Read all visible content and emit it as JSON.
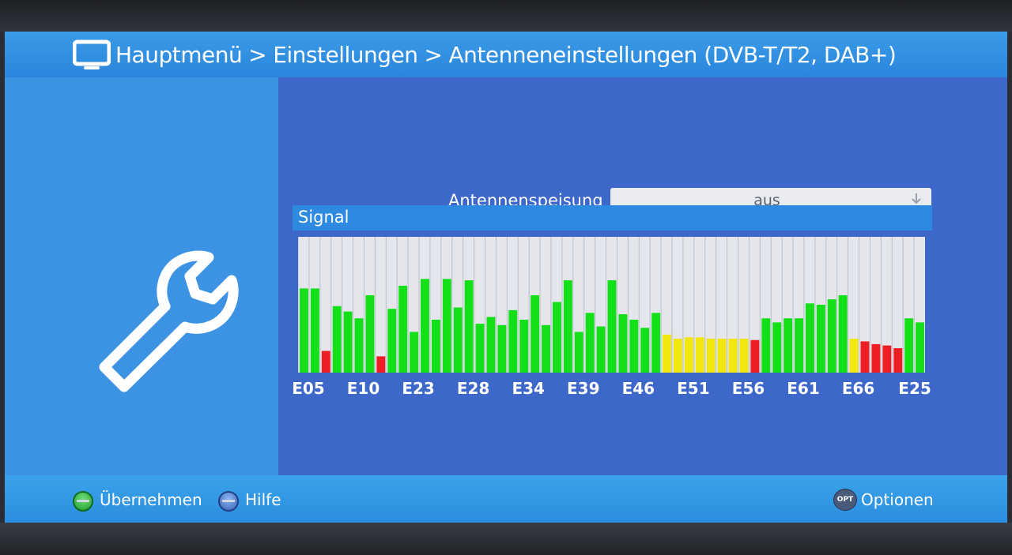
{
  "header": {
    "breadcrumb": [
      {
        "label": "Hauptmenü"
      },
      {
        "label": "Einstellungen"
      },
      {
        "label": "Antenneneinstellungen (DVB-T/T2, DAB+)"
      }
    ],
    "separator": ">"
  },
  "settings": {
    "antenna_power_label": "Antennenspeisung",
    "antenna_power_value": "aus"
  },
  "signal": {
    "title": "Signal"
  },
  "chart_data": {
    "type": "bar",
    "title": "",
    "ylim": [
      0,
      100
    ],
    "tick_labels": [
      "E05",
      "E10",
      "E23",
      "E28",
      "E34",
      "E39",
      "E46",
      "E51",
      "E56",
      "E61",
      "E66",
      "E25"
    ],
    "values": [
      62,
      62,
      16,
      49,
      45,
      40,
      57,
      12,
      47,
      64,
      30,
      69,
      39,
      69,
      48,
      68,
      36,
      41,
      35,
      46,
      39,
      57,
      35,
      52,
      68,
      30,
      44,
      34,
      68,
      43,
      39,
      33,
      44,
      28,
      25,
      26,
      26,
      25,
      25,
      25,
      25,
      24,
      40,
      37,
      40,
      40,
      51,
      50,
      54,
      57,
      25,
      23,
      21,
      20,
      18,
      40,
      37
    ],
    "colors": [
      "green",
      "green",
      "red",
      "green",
      "green",
      "green",
      "green",
      "red",
      "green",
      "green",
      "green",
      "green",
      "green",
      "green",
      "green",
      "green",
      "green",
      "green",
      "green",
      "green",
      "green",
      "green",
      "green",
      "green",
      "green",
      "green",
      "green",
      "green",
      "green",
      "green",
      "green",
      "green",
      "green",
      "yellow",
      "yellow",
      "yellow",
      "yellow",
      "yellow",
      "yellow",
      "yellow",
      "yellow",
      "red",
      "green",
      "green",
      "green",
      "green",
      "green",
      "green",
      "green",
      "green",
      "yellow",
      "red",
      "red",
      "red",
      "red",
      "green",
      "green"
    ],
    "status_colors": {
      "green": "#14e01a",
      "yellow": "#f2e70f",
      "red": "#ef1d24",
      "background": "#e4e6ec",
      "divider": "#b9bec8"
    }
  },
  "footer": {
    "apply_label": "Übernehmen",
    "help_label": "Hilfe",
    "options_label": "Optionen",
    "options_badge": "OPT"
  }
}
